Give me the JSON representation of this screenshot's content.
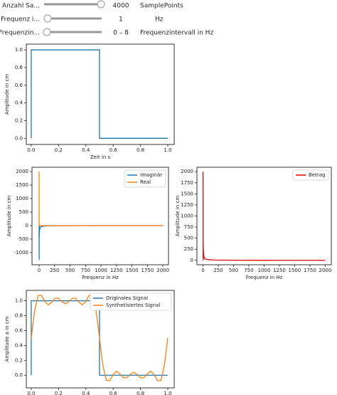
{
  "widgets": [
    {
      "label": "Anzahl Sa...",
      "value": 4000,
      "unit": "SamplePoints"
    },
    {
      "label": "Frequenz i...",
      "value": 1,
      "unit": "Hz"
    },
    {
      "label": "Frequenzin...",
      "value": "0 – 8",
      "unit": "Frequenzintervall in Hz"
    }
  ],
  "chart_data": [
    {
      "type": "line",
      "xlabel": "Zeit in s",
      "ylabel": "Amplitude in cm",
      "xlim": [
        -0.036,
        1.047
      ],
      "ylim": [
        -0.07,
        1.065
      ],
      "xticks": [
        {
          "value": 0,
          "label": "0.0"
        },
        {
          "value": 0.2,
          "label": "0.2"
        },
        {
          "value": 0.4,
          "label": "0.4"
        },
        {
          "value": 0.6,
          "label": "0.6"
        },
        {
          "value": 0.8,
          "label": "0.8"
        },
        {
          "value": 1,
          "label": "1.0"
        }
      ],
      "yticks": [
        {
          "value": 0,
          "label": "0.0"
        },
        {
          "value": 0.2,
          "label": "0.2"
        },
        {
          "value": 0.4,
          "label": "0.4"
        },
        {
          "value": 0.6,
          "label": "0.6"
        },
        {
          "value": 0.8,
          "label": "0.8"
        },
        {
          "value": 1,
          "label": "1.0"
        }
      ],
      "series": [
        {
          "color": "#1f77b4",
          "x": [
            0,
            0,
            0.5,
            0.5,
            1
          ],
          "values": [
            0,
            1,
            1,
            0,
            0
          ]
        }
      ]
    },
    {
      "type": "line",
      "xlabel": "Frequenz in Hz",
      "ylabel": "Amplitude in cm",
      "legend": "upper right",
      "xlim": [
        -115,
        2090
      ],
      "ylim": [
        -1450,
        2160
      ],
      "xticks": [
        0,
        250,
        500,
        750,
        1000,
        1250,
        1500,
        1750,
        2000
      ],
      "yticks": [
        -1000,
        -500,
        0,
        500,
        1000,
        1500,
        2000
      ],
      "x": [
        0,
        1,
        2,
        3,
        4,
        5,
        7,
        9,
        15,
        25,
        50,
        100,
        200,
        500,
        1000,
        2000
      ],
      "series": [
        {
          "name": "Imaginär",
          "color": "#1f77b4",
          "values": [
            0,
            -1273,
            0,
            -424,
            0,
            -255,
            -182,
            -141,
            -85,
            -51,
            -25,
            -13,
            -6,
            -3,
            -1,
            0
          ]
        },
        {
          "name": "Real",
          "color": "#ff7f0e",
          "values": [
            2000,
            0,
            0,
            0,
            0,
            0,
            0,
            0,
            0,
            0,
            0,
            0,
            0,
            0,
            0,
            0
          ]
        }
      ]
    },
    {
      "type": "line",
      "xlabel": "Frequenz in Hz",
      "ylabel": "Amplitude in cm",
      "legend": "upper right",
      "xlim": [
        -100,
        2100
      ],
      "ylim": [
        -100,
        2100
      ],
      "xticks": [
        0,
        250,
        500,
        750,
        1000,
        1250,
        1500,
        1750,
        2000
      ],
      "yticks": [
        0,
        250,
        500,
        750,
        1000,
        1250,
        1500,
        1750,
        2000
      ],
      "x": [
        0,
        1,
        2,
        3,
        4,
        5,
        7,
        9,
        15,
        25,
        50,
        100,
        200,
        500,
        1000,
        2000
      ],
      "series": [
        {
          "name": "Betrag",
          "color": "#e00000",
          "values": [
            2000,
            1273,
            0,
            424,
            0,
            255,
            182,
            141,
            85,
            51,
            25,
            13,
            6,
            3,
            1,
            0
          ]
        }
      ]
    },
    {
      "type": "line",
      "xlabel": "Zeit in s",
      "ylabel": "Amplitude a in cm",
      "legend": "upper right",
      "xlim": [
        -0.036,
        1.047
      ],
      "ylim": [
        -0.17,
        1.14
      ],
      "xticks": [
        {
          "value": 0,
          "label": "0.0"
        },
        {
          "value": 0.2,
          "label": "0.2"
        },
        {
          "value": 0.4,
          "label": "0.4"
        },
        {
          "value": 0.6,
          "label": "0.6"
        },
        {
          "value": 0.8,
          "label": "0.8"
        },
        {
          "value": 1,
          "label": "1.0"
        }
      ],
      "yticks": [
        {
          "value": 0,
          "label": "0.0"
        },
        {
          "value": 0.2,
          "label": "0.2"
        },
        {
          "value": 0.4,
          "label": "0.4"
        },
        {
          "value": 0.6,
          "label": "0.6"
        },
        {
          "value": 0.8,
          "label": "0.8"
        },
        {
          "value": 1,
          "label": "1.0"
        }
      ],
      "series": [
        {
          "name": "Originales Signal",
          "color": "#1f77b4",
          "x": [
            0,
            0,
            0.5,
            0.5,
            1
          ],
          "values": [
            0,
            1,
            1,
            0,
            0
          ]
        },
        {
          "name": "Synthetisiertes Signal",
          "color": "#ff7f0e",
          "x": [
            0,
            0.025,
            0.05,
            0.075,
            0.1,
            0.125,
            0.15,
            0.175,
            0.2,
            0.225,
            0.25,
            0.275,
            0.3,
            0.325,
            0.35,
            0.375,
            0.4,
            0.425,
            0.45,
            0.475,
            0.5,
            0.525,
            0.55,
            0.575,
            0.6,
            0.625,
            0.65,
            0.675,
            0.7,
            0.725,
            0.75,
            0.775,
            0.8,
            0.825,
            0.85,
            0.875,
            0.9,
            0.925,
            0.95,
            0.975,
            1
          ],
          "values": [
            0.5,
            0.867,
            1.069,
            1.074,
            0.99,
            0.946,
            0.981,
            1.034,
            1.034,
            0.988,
            0.961,
            0.988,
            1.034,
            1.034,
            0.981,
            0.946,
            0.99,
            1.074,
            1.069,
            0.867,
            0.5,
            0.133,
            -0.069,
            -0.074,
            0.01,
            0.054,
            0.019,
            -0.034,
            -0.034,
            0.012,
            0.039,
            0.012,
            -0.034,
            -0.034,
            0.019,
            0.054,
            0.01,
            -0.074,
            -0.069,
            0.133,
            0.5
          ]
        }
      ]
    }
  ]
}
